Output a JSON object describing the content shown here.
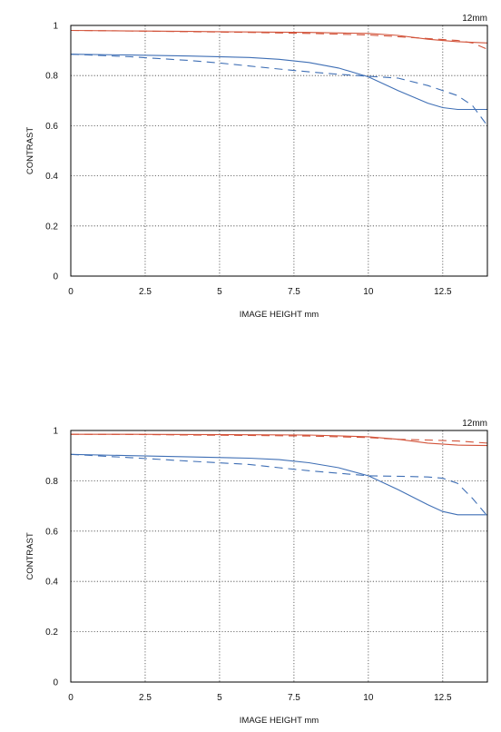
{
  "chart_data": [
    {
      "type": "line",
      "focal_label": "12mm",
      "xlabel": "IMAGE HEIGHT  mm",
      "ylabel": "CONTRAST",
      "xlim": [
        0,
        14
      ],
      "ylim": [
        0,
        1
      ],
      "xticks": [
        0,
        2.5,
        5,
        7.5,
        10,
        12.5
      ],
      "yticks": [
        0,
        0.2,
        0.4,
        0.6,
        0.8,
        1
      ],
      "grid": true,
      "series": [
        {
          "color": "#d2533a",
          "style": "solid",
          "x": [
            0,
            2,
            4,
            6,
            8,
            10,
            11,
            12,
            13,
            14
          ],
          "y": [
            0.98,
            0.978,
            0.976,
            0.974,
            0.972,
            0.968,
            0.96,
            0.945,
            0.935,
            0.93
          ]
        },
        {
          "color": "#d2533a",
          "style": "dashed",
          "x": [
            0,
            2,
            4,
            6,
            8,
            10,
            11,
            12,
            13,
            13.5,
            14
          ],
          "y": [
            0.98,
            0.978,
            0.975,
            0.972,
            0.968,
            0.962,
            0.955,
            0.948,
            0.94,
            0.93,
            0.905
          ]
        },
        {
          "color": "#3f6fb5",
          "style": "solid",
          "x": [
            0,
            2,
            4,
            6,
            7,
            8,
            9,
            10,
            11,
            12,
            12.5,
            13,
            14
          ],
          "y": [
            0.885,
            0.882,
            0.878,
            0.872,
            0.865,
            0.852,
            0.83,
            0.795,
            0.74,
            0.69,
            0.672,
            0.665,
            0.665
          ]
        },
        {
          "color": "#3f6fb5",
          "style": "dashed",
          "x": [
            0,
            2,
            4,
            5,
            6,
            7,
            8,
            9,
            10,
            11,
            12,
            13,
            13.5,
            14
          ],
          "y": [
            0.885,
            0.875,
            0.86,
            0.85,
            0.838,
            0.826,
            0.815,
            0.805,
            0.797,
            0.79,
            0.76,
            0.72,
            0.68,
            0.6
          ]
        }
      ]
    },
    {
      "type": "line",
      "focal_label": "12mm",
      "xlabel": "IMAGE HEIGHT  mm",
      "ylabel": "CONTRAST",
      "xlim": [
        0,
        14
      ],
      "ylim": [
        0,
        1
      ],
      "xticks": [
        0,
        2.5,
        5,
        7.5,
        10,
        12.5
      ],
      "yticks": [
        0,
        0.2,
        0.4,
        0.6,
        0.8,
        1
      ],
      "grid": true,
      "series": [
        {
          "color": "#d2533a",
          "style": "solid",
          "x": [
            0,
            2,
            4,
            6,
            8,
            10,
            11,
            12,
            13,
            14
          ],
          "y": [
            0.985,
            0.985,
            0.984,
            0.983,
            0.982,
            0.975,
            0.965,
            0.95,
            0.942,
            0.94
          ]
        },
        {
          "color": "#d2533a",
          "style": "dashed",
          "x": [
            0,
            2,
            4,
            6,
            8,
            10,
            11,
            12,
            13,
            14
          ],
          "y": [
            0.985,
            0.984,
            0.982,
            0.98,
            0.978,
            0.972,
            0.965,
            0.962,
            0.958,
            0.95
          ]
        },
        {
          "color": "#3f6fb5",
          "style": "solid",
          "x": [
            0,
            2,
            4,
            6,
            7,
            8,
            9,
            10,
            11,
            12,
            12.5,
            13,
            14
          ],
          "y": [
            0.905,
            0.9,
            0.895,
            0.89,
            0.884,
            0.872,
            0.852,
            0.82,
            0.765,
            0.705,
            0.678,
            0.665,
            0.665
          ]
        },
        {
          "color": "#3f6fb5",
          "style": "dashed",
          "x": [
            0,
            2,
            4,
            6,
            7,
            8,
            9,
            10,
            11,
            12,
            12.5,
            13,
            13.5,
            14
          ],
          "y": [
            0.905,
            0.892,
            0.878,
            0.865,
            0.852,
            0.84,
            0.83,
            0.82,
            0.818,
            0.815,
            0.81,
            0.79,
            0.73,
            0.66
          ]
        }
      ]
    }
  ]
}
